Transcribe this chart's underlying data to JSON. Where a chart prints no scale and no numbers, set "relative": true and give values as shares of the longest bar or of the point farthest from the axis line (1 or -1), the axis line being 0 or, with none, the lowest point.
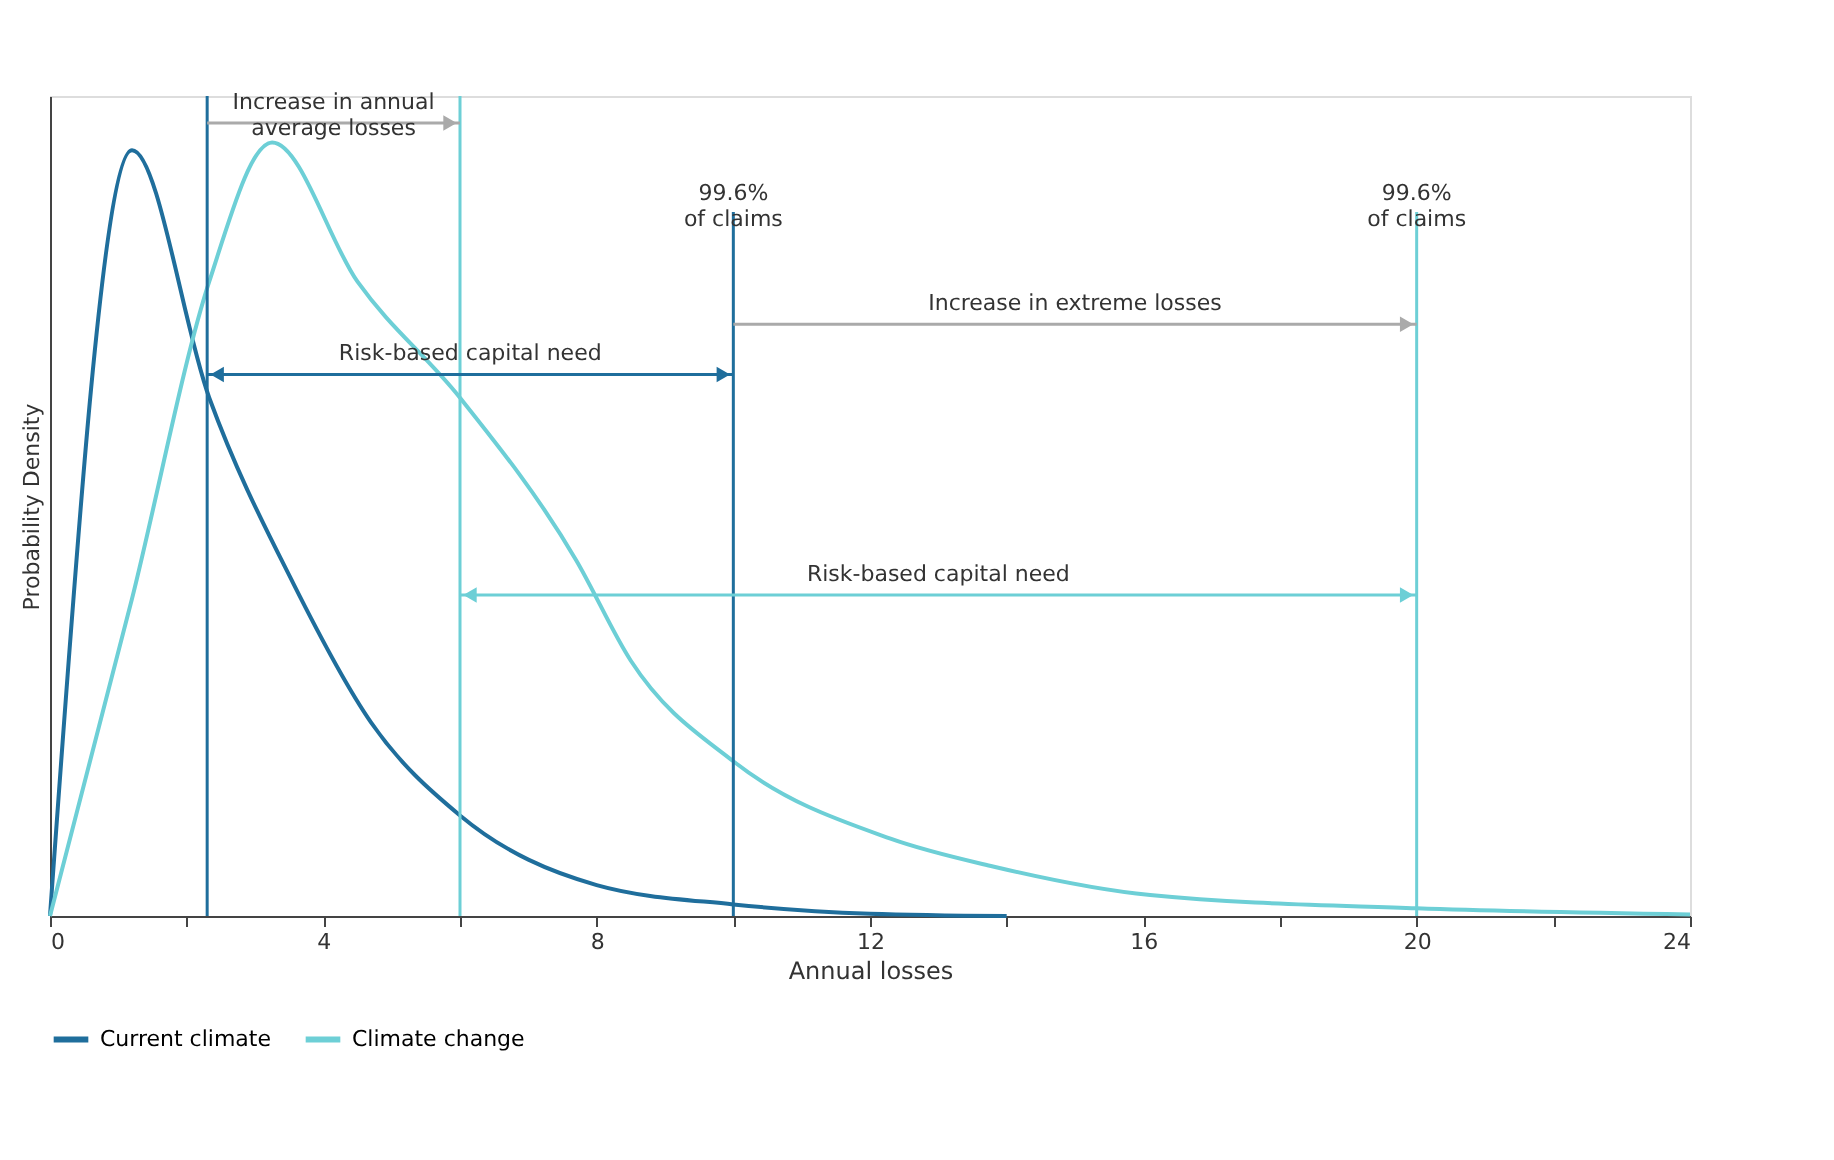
{
  "chart_data": {
    "type": "line",
    "relative": true,
    "xlabel": "Annual losses",
    "ylabel": "Probability Density",
    "xlim": [
      0,
      24
    ],
    "xticks": [
      0,
      {
        "value": 2,
        "label": null
      },
      4,
      {
        "value": 6,
        "label": null
      },
      8,
      {
        "value": 10,
        "label": null
      },
      12,
      {
        "value": 14,
        "label": null
      },
      16,
      {
        "value": 18,
        "label": null
      },
      20,
      {
        "value": 22,
        "label": null
      },
      24
    ],
    "series": [
      {
        "name": "Current climate",
        "color": "#1f6e9c",
        "x": [
          0,
          1.2,
          2.33,
          3.56,
          4.7,
          6.0,
          8.0,
          10,
          12,
          14
        ],
        "values": [
          0,
          0.99,
          0.67,
          0.43,
          0.25,
          0.13,
          0.04,
          0.015,
          0.003,
          0
        ]
      },
      {
        "name": "Climate change",
        "color": "#6dcfd6",
        "x": [
          0,
          1.2,
          2.33,
          3.25,
          4.5,
          6.0,
          7.7,
          8.5,
          10,
          12.3,
          13.8,
          16.1,
          20,
          24
        ],
        "values": [
          0,
          0.41,
          0.82,
          1.0,
          0.82,
          0.67,
          0.46,
          0.33,
          0.2,
          0.1,
          0.064,
          0.027,
          0.01,
          0.002
        ]
      }
    ],
    "ref_lines": [
      {
        "axis": "x",
        "value": 2.3,
        "label": null,
        "color": "#1f6e9c"
      },
      {
        "axis": "x",
        "value": 6,
        "label": null,
        "color": "#6dcfd6"
      },
      {
        "axis": "x",
        "value": 10,
        "label": "99.6%\nof claims",
        "color": "#1f6e9c"
      },
      {
        "axis": "x",
        "value": 20,
        "label": "99.6%\nof claims",
        "color": "#6dcfd6"
      }
    ],
    "annotations": [
      "Increase in annual\naverage losses",
      "Risk-based capital need",
      "Increase in extreme losses",
      "Risk-based capital need"
    ],
    "legend": "bottom",
    "grid": false
  }
}
